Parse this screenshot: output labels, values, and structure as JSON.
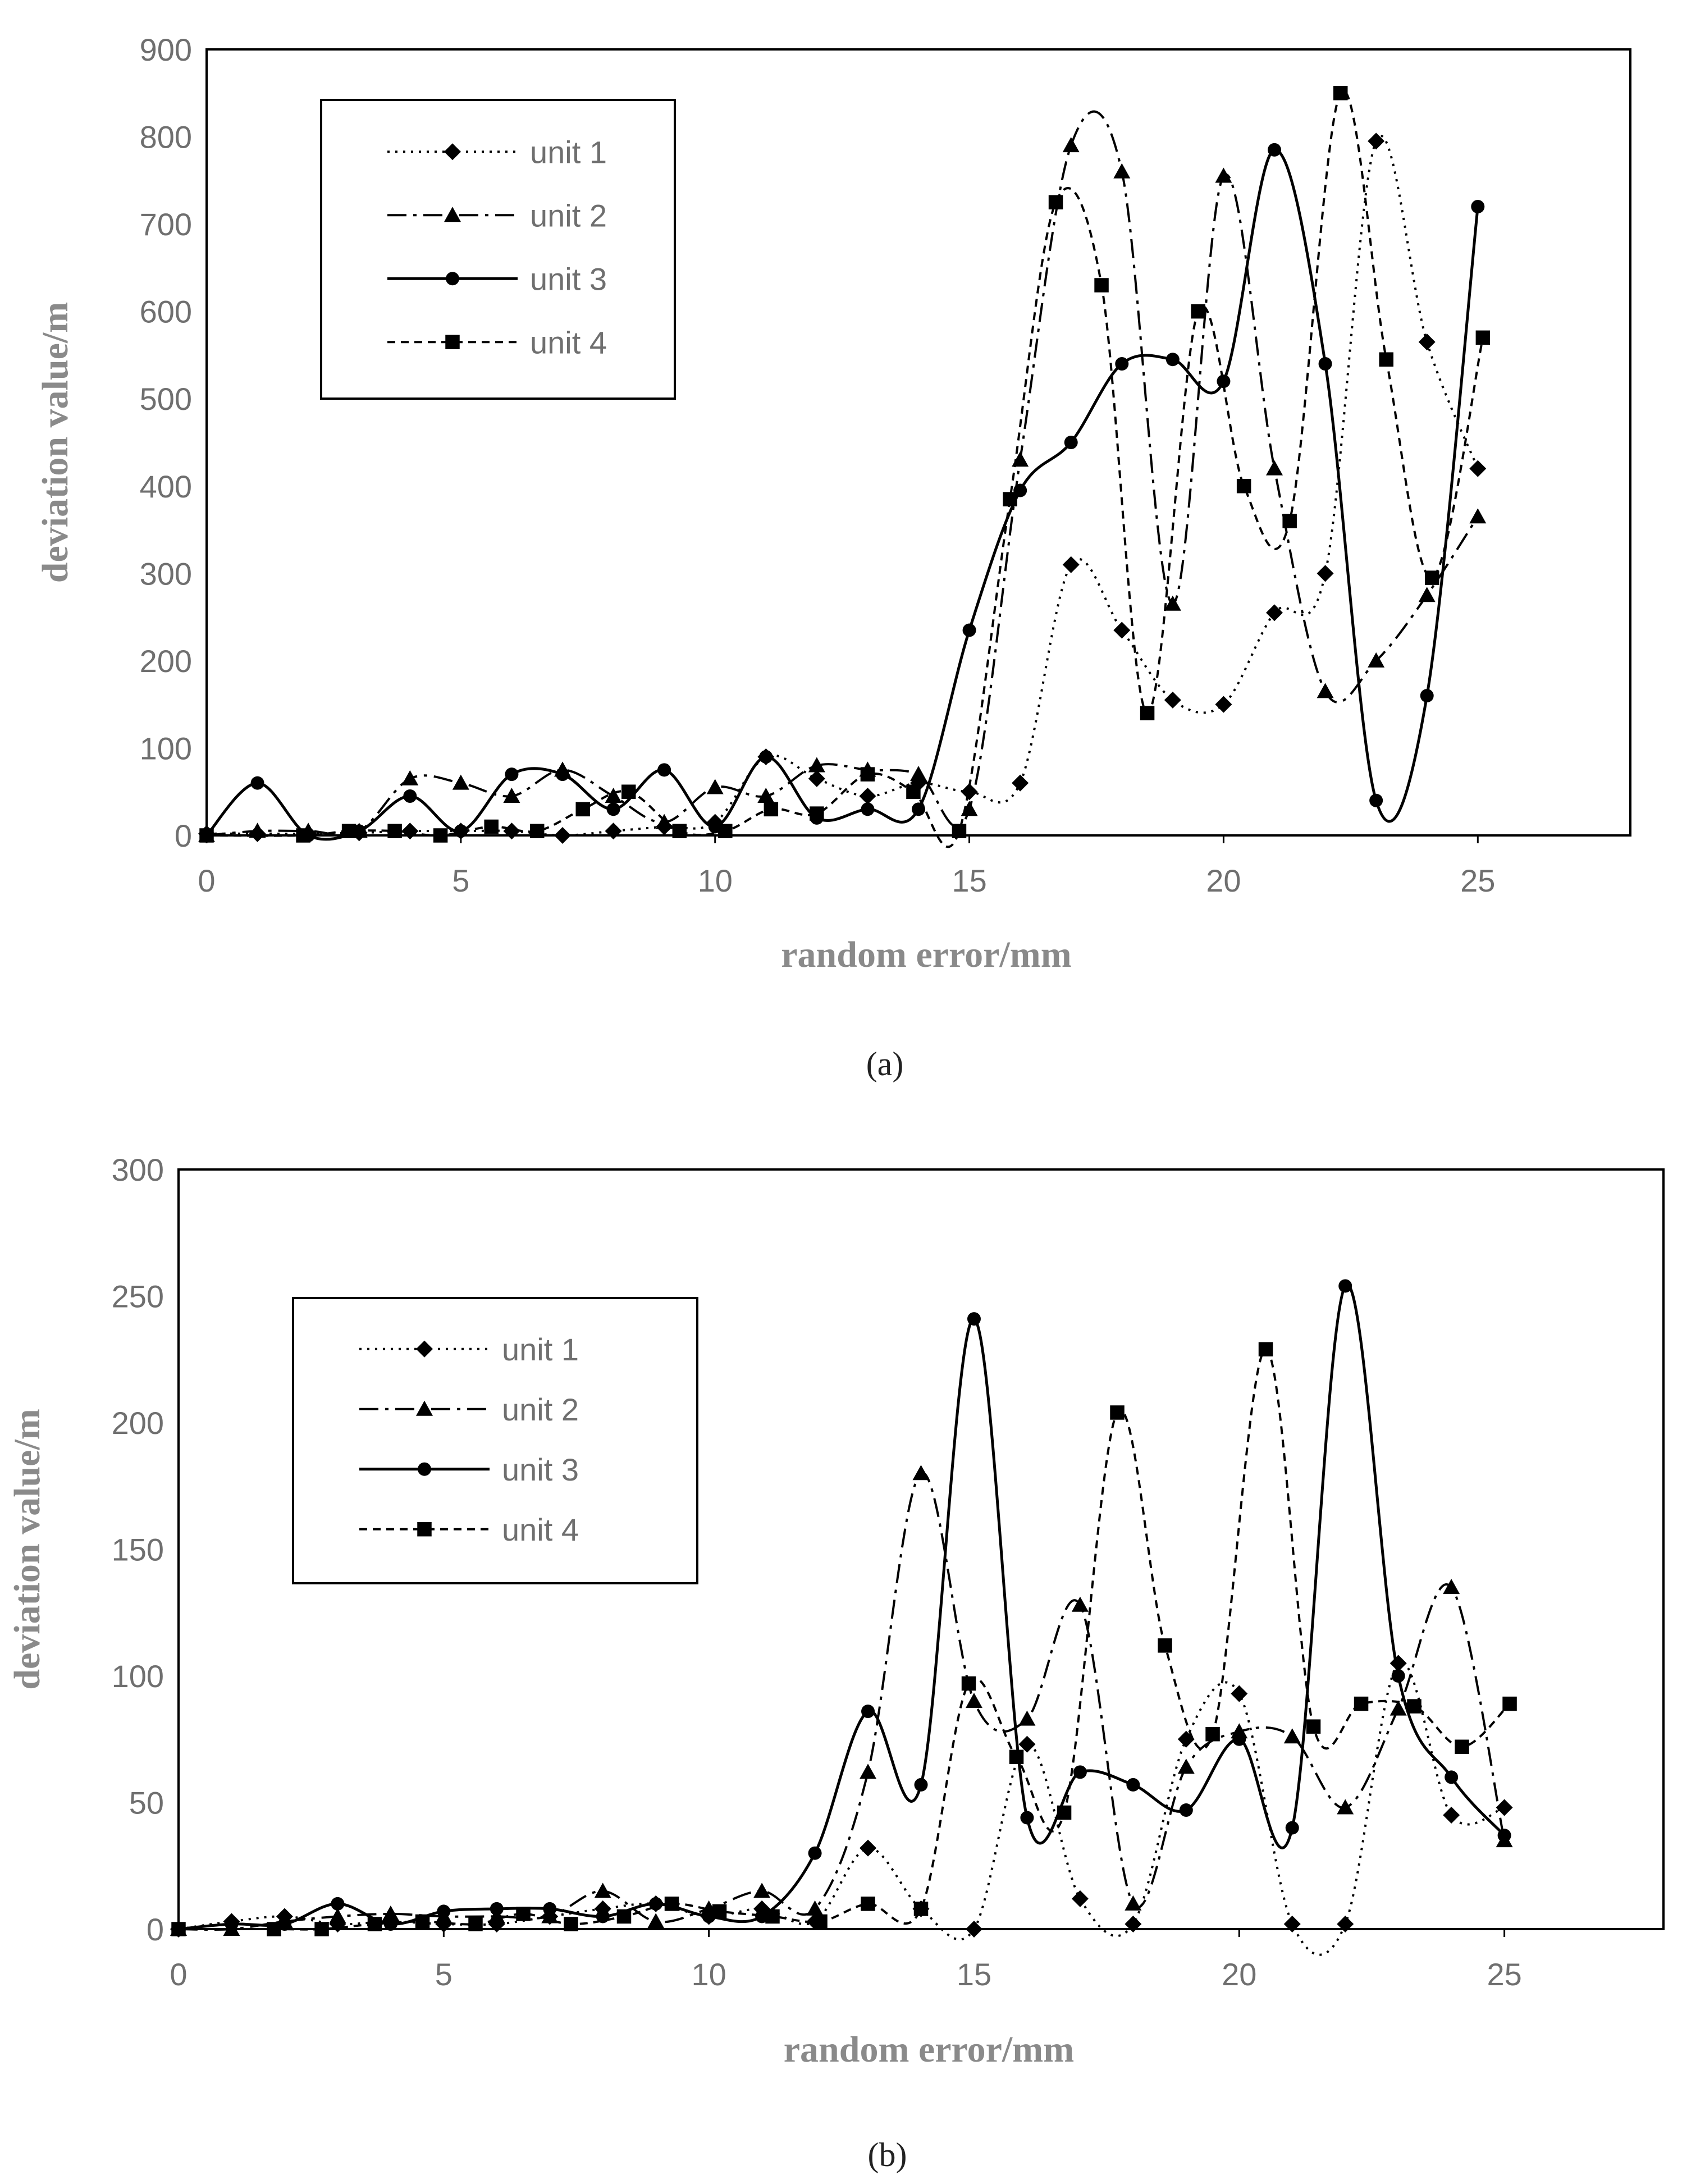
{
  "chart_data": [
    {
      "type": "line",
      "caption": "(a)",
      "xlabel": "random error/mm",
      "ylabel": "deviation value/m",
      "xlim": [
        0,
        28
      ],
      "ylim": [
        0,
        900
      ],
      "xticks": [
        0,
        5,
        10,
        15,
        20,
        25
      ],
      "yticks": [
        0,
        100,
        200,
        300,
        400,
        500,
        600,
        700,
        800,
        900
      ],
      "legend": "top-left",
      "series": [
        {
          "name": "unit 1",
          "marker": "diamond",
          "dash": "4,10",
          "x": [
            0,
            1,
            2,
            3,
            4,
            5,
            6,
            7,
            8,
            9,
            10,
            11,
            12,
            13,
            14,
            15,
            16,
            17,
            18,
            19,
            20,
            21,
            22,
            23,
            24,
            25
          ],
          "y": [
            2,
            2,
            2,
            3,
            5,
            5,
            5,
            0,
            5,
            10,
            15,
            90,
            65,
            45,
            60,
            50,
            60,
            310,
            235,
            155,
            150,
            255,
            300,
            795,
            565,
            420
          ]
        },
        {
          "name": "unit 2",
          "marker": "triangle",
          "dash": "34,12,6,12",
          "x": [
            0,
            1,
            2,
            3,
            4,
            5,
            6,
            7,
            8,
            9,
            10,
            11,
            12,
            13,
            14,
            15,
            16,
            17,
            18,
            19,
            20,
            21,
            22,
            23,
            24,
            25
          ],
          "y": [
            0,
            5,
            5,
            5,
            65,
            60,
            45,
            75,
            45,
            15,
            55,
            45,
            80,
            75,
            70,
            30,
            430,
            790,
            760,
            265,
            755,
            420,
            165,
            200,
            275,
            365
          ]
        },
        {
          "name": "unit 3",
          "marker": "circle",
          "dash": "",
          "x": [
            0,
            1,
            2,
            3,
            4,
            5,
            6,
            7,
            8,
            9,
            10,
            11,
            12,
            13,
            14,
            15,
            16,
            17,
            18,
            19,
            20,
            21,
            22,
            23,
            24,
            25
          ],
          "y": [
            0,
            60,
            0,
            5,
            45,
            5,
            70,
            70,
            30,
            75,
            10,
            90,
            20,
            30,
            30,
            235,
            395,
            450,
            540,
            545,
            520,
            785,
            540,
            40,
            160,
            720
          ]
        },
        {
          "name": "unit 4",
          "marker": "square",
          "dash": "14,10",
          "x": [
            0,
            1.9,
            2.8,
            3.7,
            4.6,
            5.6,
            6.5,
            7.4,
            8.3,
            9.3,
            10.2,
            11.1,
            12.0,
            13.0,
            13.9,
            14.8,
            15.8,
            16.7,
            17.6,
            18.5,
            19.5,
            20.4,
            21.3,
            22.3,
            23.2,
            24.1,
            25.1
          ],
          "y": [
            0,
            0,
            5,
            5,
            0,
            10,
            5,
            30,
            50,
            5,
            5,
            30,
            25,
            70,
            50,
            5,
            385,
            725,
            630,
            140,
            600,
            400,
            360,
            850,
            545,
            295,
            570
          ]
        }
      ]
    },
    {
      "type": "line",
      "caption": "(b)",
      "xlabel": "random error/mm",
      "ylabel": "deviation value/m",
      "xlim": [
        0,
        28
      ],
      "ylim": [
        0,
        300
      ],
      "xticks": [
        0,
        5,
        10,
        15,
        20,
        25
      ],
      "yticks": [
        0,
        50,
        100,
        150,
        200,
        250,
        300
      ],
      "legend": "top-left",
      "series": [
        {
          "name": "unit 1",
          "marker": "diamond",
          "dash": "4,10",
          "x": [
            0,
            1,
            2,
            3,
            4,
            5,
            6,
            7,
            8,
            9,
            10,
            11,
            12,
            13,
            14,
            15,
            16,
            17,
            18,
            19,
            20,
            21,
            22,
            23,
            24,
            25
          ],
          "y": [
            0,
            3,
            5,
            2,
            3,
            2,
            2,
            5,
            8,
            10,
            5,
            8,
            3,
            32,
            8,
            0,
            73,
            12,
            2,
            75,
            93,
            2,
            2,
            105,
            45,
            48
          ]
        },
        {
          "name": "unit 2",
          "marker": "triangle",
          "dash": "34,12,6,12",
          "x": [
            0,
            1,
            2,
            3,
            4,
            5,
            6,
            7,
            8,
            9,
            10,
            11,
            12,
            13,
            14,
            15,
            16,
            17,
            18,
            19,
            20,
            21,
            22,
            23,
            24,
            25
          ],
          "y": [
            0,
            0,
            3,
            5,
            6,
            5,
            5,
            5,
            15,
            3,
            8,
            15,
            8,
            62,
            180,
            90,
            83,
            128,
            10,
            64,
            78,
            76,
            48,
            87,
            135,
            35
          ]
        },
        {
          "name": "unit 3",
          "marker": "circle",
          "dash": "",
          "x": [
            0,
            1,
            2,
            3,
            4,
            5,
            6,
            7,
            8,
            9,
            10,
            11,
            12,
            13,
            14,
            15,
            16,
            17,
            18,
            19,
            20,
            21,
            22,
            23,
            24,
            25
          ],
          "y": [
            0,
            2,
            2,
            10,
            2,
            7,
            8,
            8,
            5,
            10,
            5,
            5,
            30,
            86,
            57,
            241,
            44,
            62,
            57,
            47,
            75,
            40,
            254,
            100,
            60,
            37
          ]
        },
        {
          "name": "unit 4",
          "marker": "square",
          "dash": "14,10",
          "x": [
            0,
            1.8,
            2.7,
            3.7,
            4.6,
            5.6,
            6.5,
            7.4,
            8.4,
            9.3,
            10.2,
            11.2,
            12.1,
            13.0,
            14.0,
            14.9,
            15.8,
            16.7,
            17.7,
            18.6,
            19.5,
            20.5,
            21.4,
            22.3,
            23.3,
            24.2,
            25.1
          ],
          "y": [
            0,
            0,
            0,
            2,
            3,
            2,
            6,
            2,
            5,
            10,
            7,
            5,
            3,
            10,
            8,
            97,
            68,
            46,
            204,
            112,
            77,
            229,
            80,
            89,
            88,
            72,
            89
          ]
        }
      ]
    }
  ]
}
